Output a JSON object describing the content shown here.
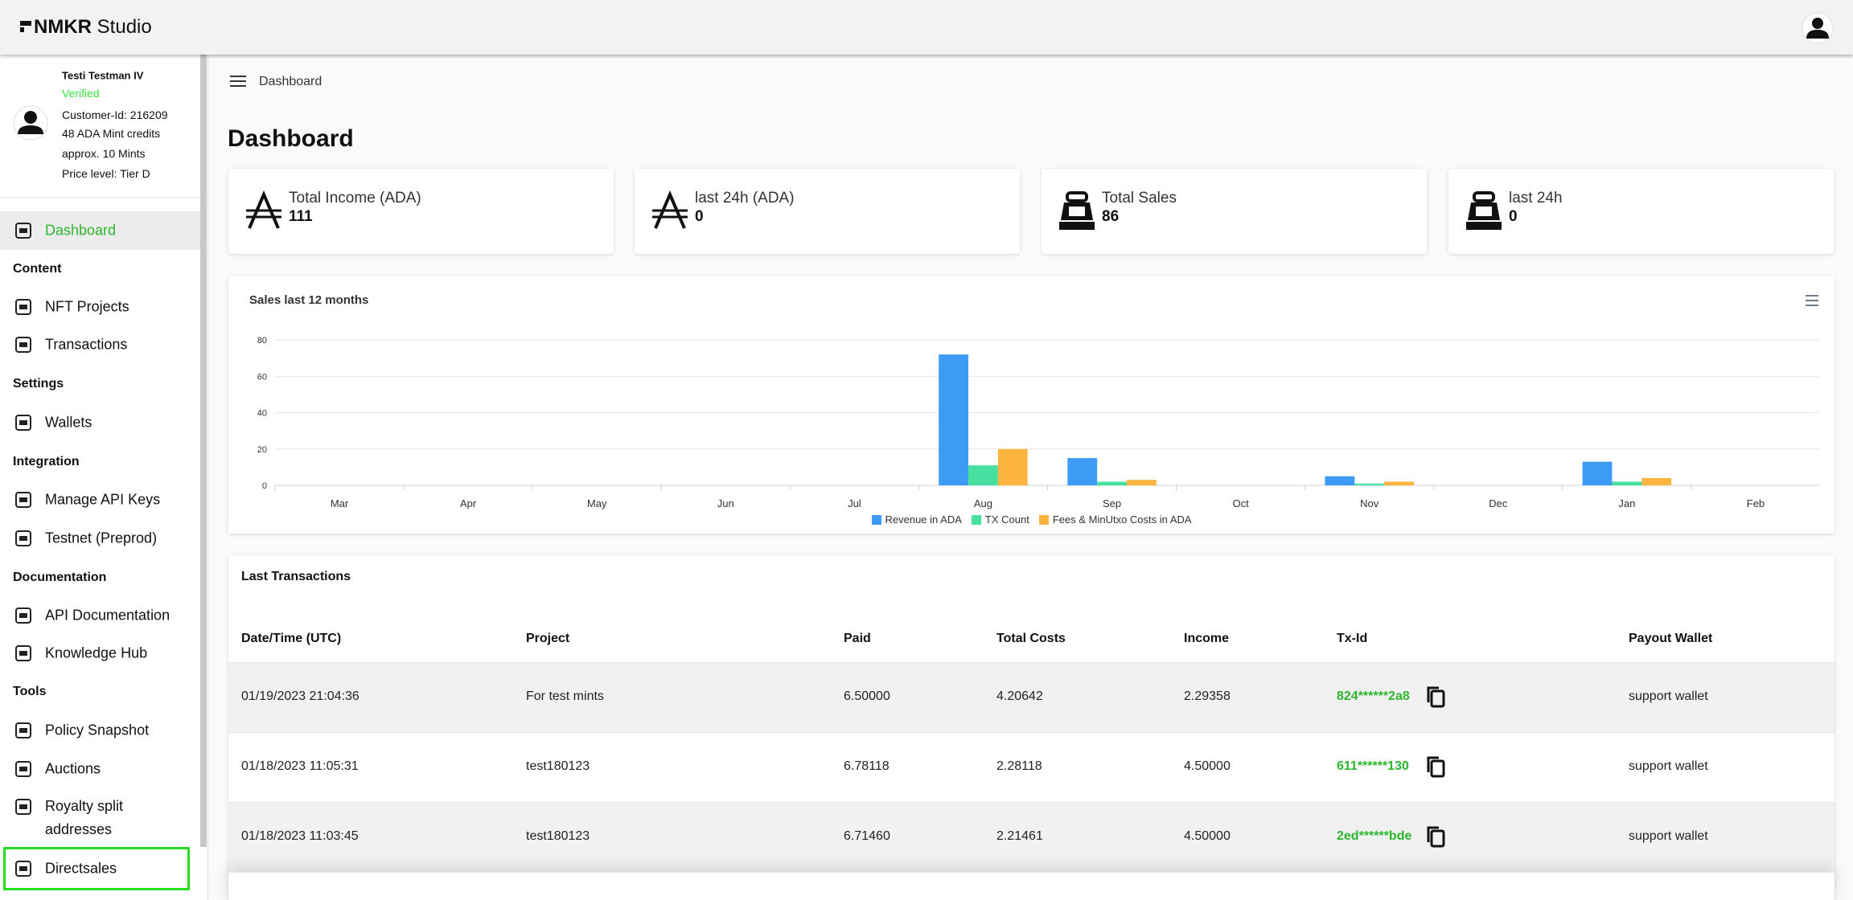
{
  "header": {
    "brand": "NMKR",
    "product": "Studio"
  },
  "profile": {
    "name": "Testi Testman IV",
    "status": "Verified",
    "customer_id": "Customer-Id: 216209",
    "credits": "48 ADA Mint credits",
    "mints": "approx. 10 Mints",
    "price_level": "Price level: Tier D"
  },
  "nav": [
    {
      "label": "Dashboard"
    },
    {
      "heading": "Content"
    },
    {
      "label": "NFT Projects"
    },
    {
      "label": "Transactions"
    },
    {
      "heading": "Settings"
    },
    {
      "label": "Wallets"
    },
    {
      "heading": "Integration"
    },
    {
      "label": "Manage API Keys"
    },
    {
      "label": "Testnet (Preprod)"
    },
    {
      "heading": "Documentation"
    },
    {
      "label": "API Documentation"
    },
    {
      "label": "Knowledge Hub"
    },
    {
      "heading": "Tools"
    },
    {
      "label": "Policy Snapshot"
    },
    {
      "label": "Auctions"
    },
    {
      "label": "Royalty split addresses"
    },
    {
      "label": "Directsales"
    }
  ],
  "breadcrumb": "Dashboard",
  "page_title": "Dashboard",
  "stats": [
    {
      "label": "Total Income (ADA)",
      "value": 111
    },
    {
      "label": "last 24h (ADA)",
      "value": 0
    },
    {
      "label": "Total Sales",
      "value": 86
    },
    {
      "label": "last 24h",
      "value": 0
    }
  ],
  "chart_data": {
    "type": "bar",
    "title": "Sales last 12 months",
    "categories": [
      "Mar",
      "Apr",
      "May",
      "Jun",
      "Jul",
      "Aug",
      "Sep",
      "Oct",
      "Nov",
      "Dec",
      "Jan",
      "Feb"
    ],
    "series": [
      {
        "name": "Revenue in ADA",
        "color": "#3d9bf5",
        "values": [
          0,
          0,
          0,
          0,
          0,
          72,
          15,
          0,
          5,
          0,
          13,
          0
        ]
      },
      {
        "name": "TX Count",
        "color": "#47e0a0",
        "values": [
          0,
          0,
          0,
          0,
          0,
          11,
          2,
          0,
          1,
          0,
          2,
          0
        ]
      },
      {
        "name": "Fees & MinUtxo Costs in ADA",
        "color": "#fdb53f",
        "values": [
          0,
          0,
          0,
          0,
          0,
          20,
          3,
          0,
          2,
          0,
          4,
          0
        ]
      }
    ],
    "ylim": [
      0,
      80
    ],
    "yticks": [
      0,
      20,
      40,
      60,
      80
    ],
    "grid": true,
    "legend": "bottom"
  },
  "transactions": {
    "title": "Last Transactions",
    "columns": [
      "Date/Time (UTC)",
      "Project",
      "Paid",
      "Total Costs",
      "Income",
      "Tx-Id",
      "Payout Wallet"
    ],
    "rows": [
      [
        "01/19/2023 21:04:36",
        "For test mints",
        "6.50000",
        "4.20642",
        "2.29358",
        "824******2a8",
        "support wallet"
      ],
      [
        "01/18/2023 11:05:31",
        "test180123",
        "6.78118",
        "2.28118",
        "4.50000",
        "611******130",
        "support wallet"
      ],
      [
        "01/18/2023 11:03:45",
        "test180123",
        "6.71460",
        "2.21461",
        "4.50000",
        "2ed******bde",
        "support wallet"
      ]
    ]
  }
}
